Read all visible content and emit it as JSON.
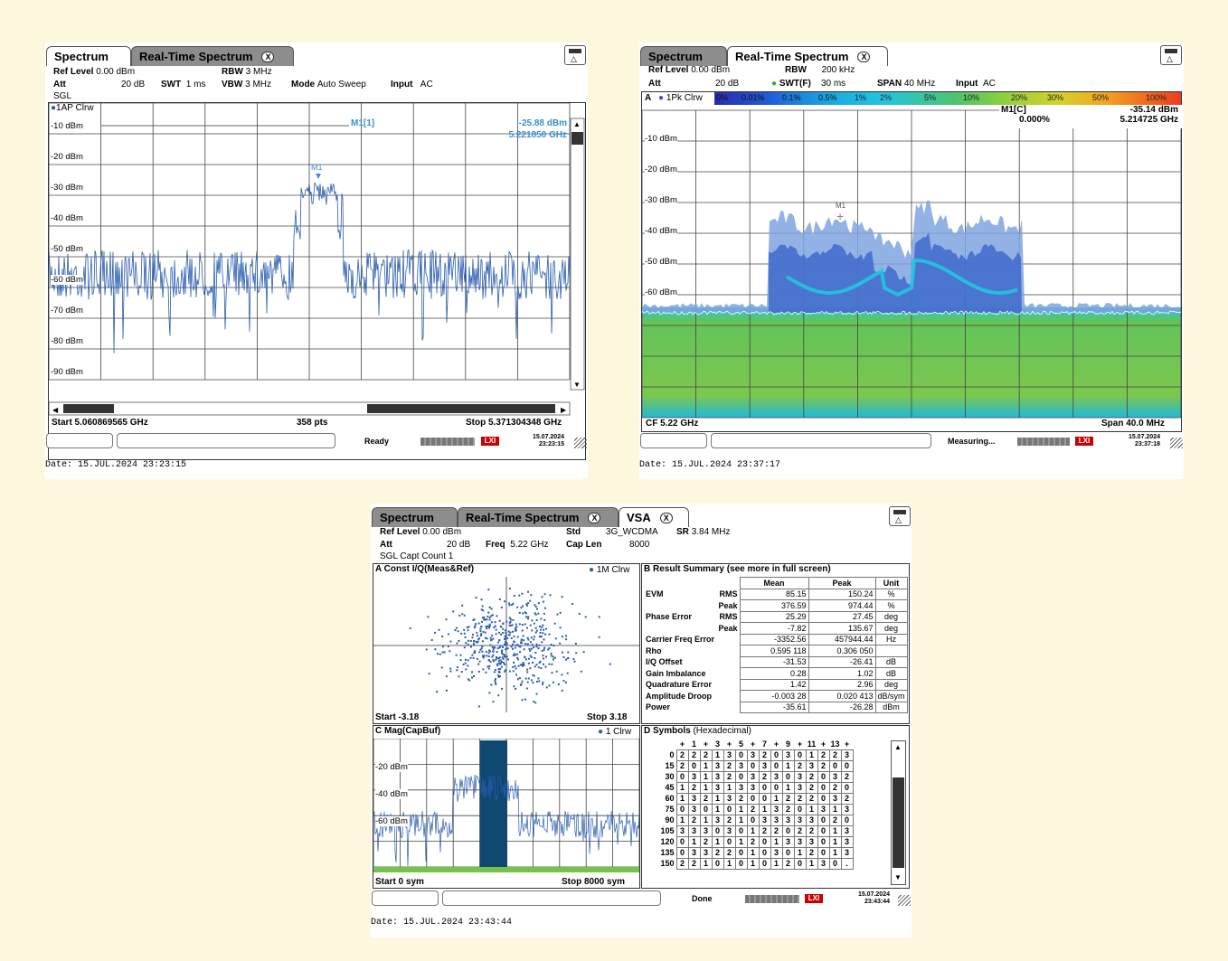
{
  "screen1": {
    "tabs": [
      {
        "label": "Spectrum"
      },
      {
        "label": "Real-Time Spectrum"
      }
    ],
    "close_glyph": "X",
    "header": {
      "ref_level_label": "Ref Level",
      "ref_level": "0.00 dBm",
      "att_label": "Att",
      "att": "20 dB",
      "swt_label": "SWT",
      "swt": "1 ms",
      "rbw_label": "RBW",
      "rbw": "3 MHz",
      "vbw_label": "VBW",
      "vbw": "3 MHz",
      "mode_label": "Mode",
      "mode": "Auto Sweep",
      "input_label": "Input",
      "input": "AC",
      "sgl": "SGL"
    },
    "trace_label": "1AP Clrw",
    "marker_label": "M1[1]",
    "marker_level": "-25.88 dBm",
    "marker_freq": "5.221850 GHz",
    "marker_tag": "M1",
    "y_ticks": [
      "-10 dBm",
      "-20 dBm",
      "-30 dBm",
      "-40 dBm",
      "-50 dBm",
      "-60 dBm",
      "-70 dBm",
      "-80 dBm",
      "-90 dBm"
    ],
    "start": "Start 5.060869565 GHz",
    "pts": "358 pts",
    "stop": "Stop 5.371304348 GHz",
    "status": "Ready",
    "date_line1": "15.07.2024",
    "date_line2": "23:23:15",
    "datestamp": "Date: 15.JUL.2024  23:23:15",
    "rx_label": "LXI"
  },
  "screen2": {
    "tabs": [
      {
        "label": "Spectrum"
      },
      {
        "label": "Real-Time Spectrum"
      }
    ],
    "close_glyph": "X",
    "header": {
      "ref_level_label": "Ref Level",
      "ref_level": "0.00 dBm",
      "att_label": "Att",
      "att": "20 dB",
      "rbw_label": "RBW",
      "rbw": "200 kHz",
      "swt_label": "SWT(F)",
      "swt": "30 ms",
      "span_label": "SPAN",
      "span": "40 MHz",
      "input_label": "Input",
      "input": "AC"
    },
    "trace_label": "A",
    "trace_label2": "1Pk Clrw",
    "persistence_scale": [
      "0%",
      "0.01%",
      "0.1%",
      "0.5%",
      "1%",
      "2%",
      "5%",
      "10%",
      "20%",
      "30%",
      "50%",
      "100%"
    ],
    "marker_label": "M1[C]",
    "marker_pct": "0.000%",
    "marker_level": "-35.14 dBm",
    "marker_freq": "5.214725 GHz",
    "marker_tag": "M1",
    "y_ticks": [
      "-10 dBm",
      "-20 dBm",
      "-30 dBm",
      "-40 dBm",
      "-50 dBm",
      "-60 dBm"
    ],
    "cf": "CF 5.22 GHz",
    "span_bottom": "Span 40.0 MHz",
    "status": "Measuring...",
    "date_line1": "15.07.2024",
    "date_line2": "23:37:18",
    "datestamp": "Date: 15.JUL.2024  23:37:17",
    "rx_label": "LXI"
  },
  "screen3": {
    "tabs": [
      {
        "label": "Spectrum"
      },
      {
        "label": "Real-Time Spectrum"
      },
      {
        "label": "VSA"
      }
    ],
    "close_glyph": "X",
    "header": {
      "ref_level_label": "Ref Level",
      "ref_level": "0.00 dBm",
      "att_label": "Att",
      "att": "20 dB",
      "freq_label": "Freq",
      "freq": "5.22 GHz",
      "std_label": "Std",
      "std": "3G_WCDMA",
      "sr_label": "SR",
      "sr": "3.84 MHz",
      "caplen_label": "Cap Len",
      "caplen": "8000",
      "sgl": "SGL Capt Count 1"
    },
    "panel_a": {
      "title": "A Const I/Q(Meas&Ref)",
      "trace": "1M Clrw",
      "start": "Start -3.18",
      "stop": "Stop 3.18"
    },
    "panel_b": {
      "title": "B Result Summary (see more in full screen)",
      "cols": [
        "Mean",
        "Peak",
        "Unit"
      ],
      "rows": [
        {
          "label": "EVM",
          "sub": "RMS",
          "mean": "85.15",
          "peak": "150.24",
          "unit": "%"
        },
        {
          "label": "",
          "sub": "Peak",
          "mean": "376.59",
          "peak": "974.44",
          "unit": "%"
        },
        {
          "label": "Phase Error",
          "sub": "RMS",
          "mean": "25.29",
          "peak": "27.45",
          "unit": "deg"
        },
        {
          "label": "",
          "sub": "Peak",
          "mean": "-7.82",
          "peak": "135.67",
          "unit": "deg"
        },
        {
          "label": "Carrier Freq Error",
          "sub": "",
          "mean": "-3352.56",
          "peak": "457944.44",
          "unit": "Hz"
        },
        {
          "label": "Rho",
          "sub": "",
          "mean": "0.595 118",
          "peak": "0.306 050",
          "unit": ""
        },
        {
          "label": "I/Q Offset",
          "sub": "",
          "mean": "-31.53",
          "peak": "-26.41",
          "unit": "dB"
        },
        {
          "label": "Gain Imbalance",
          "sub": "",
          "mean": "0.28",
          "peak": "1.02",
          "unit": "dB"
        },
        {
          "label": "Quadrature Error",
          "sub": "",
          "mean": "1.42",
          "peak": "2.96",
          "unit": "deg"
        },
        {
          "label": "Amplitude Droop",
          "sub": "",
          "mean": "-0.003 28",
          "peak": "0.020 413",
          "unit": "dB/sym"
        },
        {
          "label": "Power",
          "sub": "",
          "mean": "-35.61",
          "peak": "-26.28",
          "unit": "dBm"
        }
      ]
    },
    "panel_c": {
      "title": "C Mag(CapBuf)",
      "trace": "1 Clrw",
      "y_ticks": [
        "-20 dBm",
        "-40 dBm",
        "-60 dBm"
      ],
      "start": "Start 0 sym",
      "stop": "Stop 8000 sym"
    },
    "panel_d": {
      "title": "D Symbols",
      "title2": "(Hexadecimal)",
      "col_headers": [
        "+",
        "1",
        "+",
        "3",
        "+",
        "5",
        "+",
        "7",
        "+",
        "9",
        "+",
        "11",
        "+",
        "13",
        "+"
      ],
      "rows": [
        {
          "idx": "0",
          "vals": [
            "2",
            "2",
            "2",
            "1",
            "3",
            "0",
            "3",
            "2",
            "0",
            "3",
            "0",
            "1",
            "2",
            "2",
            "3"
          ]
        },
        {
          "idx": "15",
          "vals": [
            "2",
            "0",
            "1",
            "3",
            "2",
            "3",
            "0",
            "3",
            "0",
            "1",
            "2",
            "3",
            "2",
            "0",
            "0"
          ]
        },
        {
          "idx": "30",
          "vals": [
            "0",
            "3",
            "1",
            "3",
            "2",
            "0",
            "3",
            "2",
            "3",
            "0",
            "3",
            "2",
            "0",
            "3",
            "2"
          ]
        },
        {
          "idx": "45",
          "vals": [
            "1",
            "2",
            "1",
            "3",
            "1",
            "3",
            "3",
            "0",
            "0",
            "1",
            "3",
            "2",
            "0",
            "2",
            "0"
          ]
        },
        {
          "idx": "60",
          "vals": [
            "1",
            "3",
            "2",
            "1",
            "3",
            "2",
            "0",
            "0",
            "1",
            "2",
            "2",
            "2",
            "0",
            "3",
            "2"
          ]
        },
        {
          "idx": "75",
          "vals": [
            "0",
            "3",
            "0",
            "1",
            "0",
            "1",
            "2",
            "1",
            "3",
            "2",
            "0",
            "1",
            "3",
            "1",
            "3"
          ]
        },
        {
          "idx": "90",
          "vals": [
            "1",
            "2",
            "1",
            "3",
            "2",
            "1",
            "0",
            "3",
            "3",
            "3",
            "3",
            "3",
            "0",
            "2",
            "0"
          ]
        },
        {
          "idx": "105",
          "vals": [
            "3",
            "3",
            "3",
            "0",
            "3",
            "0",
            "1",
            "2",
            "2",
            "0",
            "2",
            "2",
            "0",
            "1",
            "3"
          ]
        },
        {
          "idx": "120",
          "vals": [
            "0",
            "1",
            "2",
            "1",
            "0",
            "1",
            "2",
            "0",
            "1",
            "3",
            "3",
            "3",
            "0",
            "1",
            "3"
          ]
        },
        {
          "idx": "135",
          "vals": [
            "0",
            "3",
            "3",
            "2",
            "2",
            "0",
            "1",
            "0",
            "3",
            "0",
            "1",
            "2",
            "0",
            "1",
            "3"
          ]
        },
        {
          "idx": "150",
          "vals": [
            "2",
            "2",
            "1",
            "0",
            "1",
            "0",
            "1",
            "0",
            "1",
            "2",
            "0",
            "1",
            "3",
            "0",
            "."
          ]
        }
      ]
    },
    "status": "Done",
    "date_line1": "15.07.2024",
    "date_line2": "23:43:44",
    "datestamp": "Date: 15.JUL.2024  23:43:44",
    "rx_label": "LXI"
  },
  "colors": {
    "trace": "#2a5db0",
    "marker": "#3a8fd0",
    "cyan": "#22c5e0",
    "green": "#74c44a"
  }
}
